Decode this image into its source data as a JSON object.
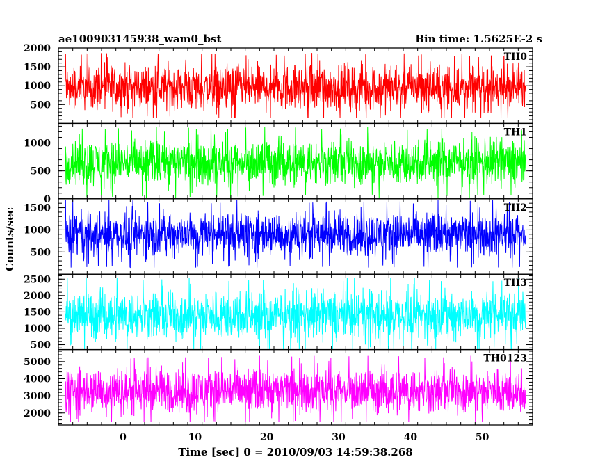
{
  "header": {
    "title": "ae100903145938_wam0_bst",
    "bin_time": "Bin time: 1.5625E-2 s"
  },
  "axes": {
    "xlabel": "Time [sec] 0 = 2010/09/03 14:59:38.268",
    "ylabel": "Counts/sec"
  },
  "chart_data": {
    "type": "line",
    "title": "ae100903145938_wam0_bst",
    "subtitle": "Bin time: 1.5625E-2 s",
    "xlabel": "Time [sec] 0 = 2010/09/03 14:59:38.268",
    "ylabel": "Counts/sec",
    "xlim": [
      -9,
      57
    ],
    "x_data_range": [
      -8,
      56
    ],
    "x_ticks": [
      0,
      10,
      20,
      30,
      40,
      50
    ],
    "grid": false,
    "series": [
      {
        "name": "TH0",
        "color": "#ff0000",
        "ylim": [
          0,
          2000
        ],
        "y_ticks": [
          500,
          1000,
          1500,
          2000
        ],
        "mean": 950,
        "min": 150,
        "max": 2000
      },
      {
        "name": "TH1",
        "color": "#00ff00",
        "ylim": [
          0,
          1350
        ],
        "y_ticks": [
          0,
          500,
          1000
        ],
        "mean": 650,
        "min": 20,
        "max": 1300
      },
      {
        "name": "TH2",
        "color": "#0000ff",
        "ylim": [
          0,
          1700
        ],
        "y_ticks": [
          500,
          1000,
          1500
        ],
        "mean": 900,
        "min": 150,
        "max": 1700
      },
      {
        "name": "TH3",
        "color": "#00ffff",
        "ylim": [
          350,
          2650
        ],
        "y_ticks": [
          500,
          1000,
          1500,
          2000,
          2500
        ],
        "mean": 1400,
        "min": 350,
        "max": 2650
      },
      {
        "name": "TH0123",
        "color": "#ff00ff",
        "ylim": [
          1300,
          5700
        ],
        "y_ticks": [
          2000,
          3000,
          4000,
          5000
        ],
        "mean": 3300,
        "min": 1500,
        "max": 5600
      }
    ]
  }
}
